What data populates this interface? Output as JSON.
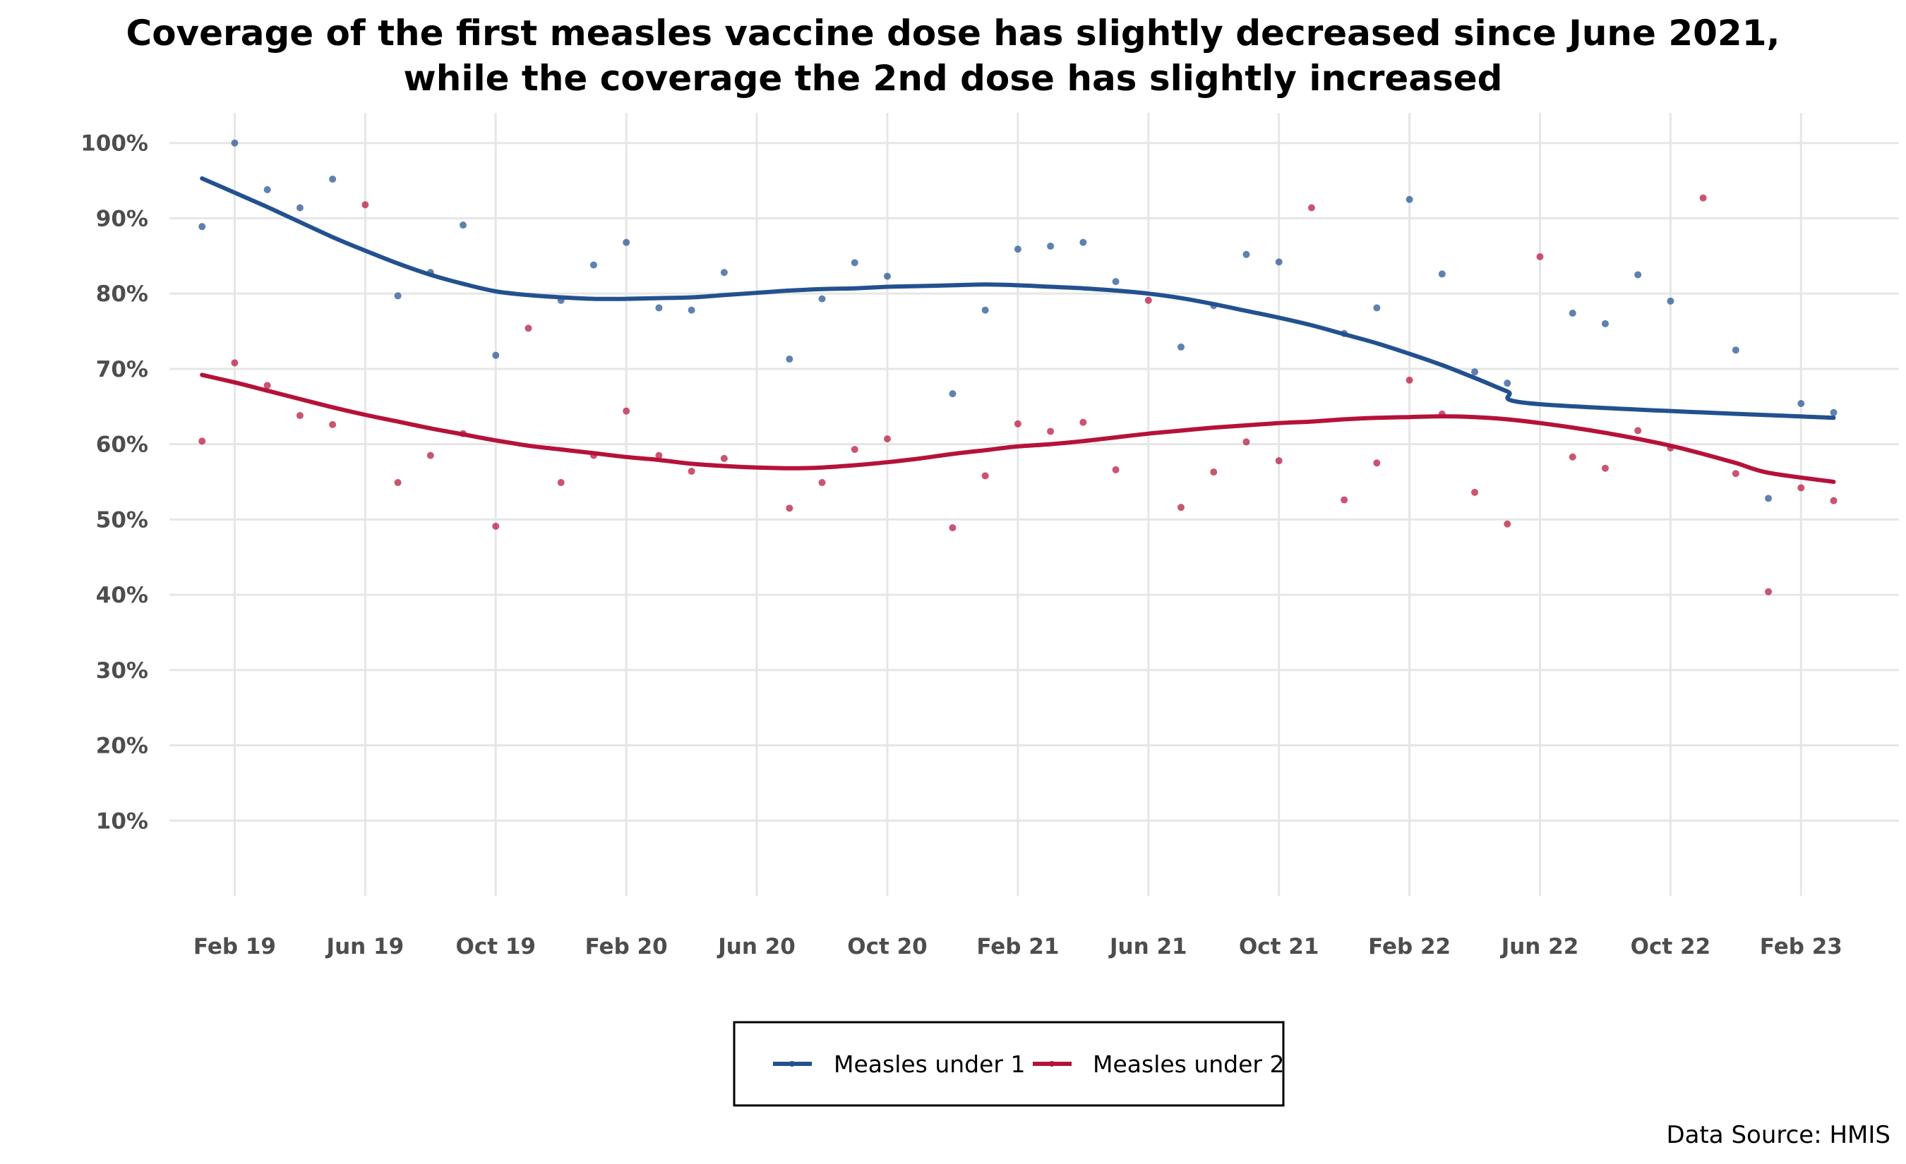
{
  "chart_data": {
    "type": "scatter",
    "title": "Coverage of the first measles vaccine dose has slightly decreased since June 2021,",
    "subtitle": "while the coverage the 2nd dose has slightly increased",
    "xlabel": "",
    "ylabel": "",
    "caption": "Data Source: HMIS",
    "x_ticks": [
      "Feb 19",
      "Jun 19",
      "Oct 19",
      "Feb 20",
      "Jun 20",
      "Oct 20",
      "Feb 21",
      "Jun 21",
      "Oct 21",
      "Feb 22",
      "Jun 22",
      "Oct 22",
      "Feb 23"
    ],
    "x_tick_values": [
      "2019-02",
      "2019-06",
      "2019-10",
      "2020-02",
      "2020-06",
      "2020-10",
      "2021-02",
      "2021-06",
      "2021-10",
      "2022-02",
      "2022-06",
      "2022-10",
      "2023-02"
    ],
    "y_ticks": [
      "10%",
      "20%",
      "30%",
      "40%",
      "50%",
      "60%",
      "70%",
      "80%",
      "90%",
      "100%"
    ],
    "y_tick_values": [
      10,
      20,
      30,
      40,
      50,
      60,
      70,
      80,
      90,
      100
    ],
    "xlim": [
      "2018-12",
      "2023-05"
    ],
    "ylim": [
      0,
      104
    ],
    "grid": true,
    "legend_position": "bottom",
    "x": [
      "2019-01",
      "2019-02",
      "2019-03",
      "2019-04",
      "2019-05",
      "2019-06",
      "2019-07",
      "2019-08",
      "2019-09",
      "2019-10",
      "2019-11",
      "2019-12",
      "2020-01",
      "2020-02",
      "2020-03",
      "2020-04",
      "2020-05",
      "2020-06",
      "2020-07",
      "2020-08",
      "2020-09",
      "2020-10",
      "2020-11",
      "2020-12",
      "2021-01",
      "2021-02",
      "2021-03",
      "2021-04",
      "2021-05",
      "2021-06",
      "2021-07",
      "2021-08",
      "2021-09",
      "2021-10",
      "2021-11",
      "2021-12",
      "2022-01",
      "2022-02",
      "2022-03",
      "2022-04",
      "2022-05",
      "2022-06",
      "2022-07",
      "2022-08",
      "2022-09",
      "2022-10",
      "2022-11",
      "2022-12",
      "2023-01",
      "2023-02",
      "2023-03"
    ],
    "series": [
      {
        "name": "Measles under 1",
        "color": "#23518f",
        "values": [
          88.9,
          100,
          93.8,
          91.4,
          95.2,
          null,
          79.7,
          82.8,
          89.1,
          71.8,
          null,
          79.1,
          83.8,
          86.8,
          78.1,
          77.8,
          82.8,
          null,
          71.3,
          79.3,
          84.1,
          82.3,
          null,
          66.7,
          77.8,
          85.9,
          86.3,
          86.8,
          81.6,
          null,
          72.9,
          78.4,
          85.2,
          84.2,
          null,
          74.7,
          78.1,
          92.5,
          82.6,
          69.6,
          68.1,
          null,
          77.4,
          76.0,
          82.5,
          79.0,
          null,
          72.5,
          52.8,
          65.4,
          64.2
        ],
        "trend": [
          95.3,
          93.4,
          91.5,
          89.5,
          87.5,
          85.7,
          84.0,
          82.5,
          81.3,
          80.3,
          79.8,
          79.5,
          79.3,
          79.3,
          79.4,
          79.5,
          79.8,
          80.1,
          80.4,
          80.6,
          80.7,
          80.9,
          81.0,
          81.1,
          81.2,
          81.1,
          80.9,
          80.7,
          80.4,
          80.0,
          79.4,
          78.6,
          77.7,
          76.8,
          75.8,
          74.6,
          73.4,
          72.0,
          70.5,
          68.8,
          67.0,
          65.3,
          63.5
        ],
        "trend_x": [
          "2019-01",
          "2019-02",
          "2019-03",
          "2019-04",
          "2019-05",
          "2019-06",
          "2019-07",
          "2019-08",
          "2019-09",
          "2019-10",
          "2019-11",
          "2019-12",
          "2020-01",
          "2020-02",
          "2020-03",
          "2020-04",
          "2020-05",
          "2020-06",
          "2020-07",
          "2020-08",
          "2020-09",
          "2020-10",
          "2020-11",
          "2020-12",
          "2021-01",
          "2021-02",
          "2021-03",
          "2021-04",
          "2021-05",
          "2021-06",
          "2021-07",
          "2021-08",
          "2021-09",
          "2021-10",
          "2021-11",
          "2021-12",
          "2022-01",
          "2022-02",
          "2022-03",
          "2022-04",
          "2022-05",
          "2022-06",
          "2023-03"
        ]
      },
      {
        "name": "Measles under 2",
        "color": "#b5123a",
        "values": [
          60.4,
          70.8,
          67.8,
          63.8,
          62.6,
          91.8,
          54.9,
          58.5,
          61.4,
          49.1,
          75.4,
          54.9,
          58.5,
          64.4,
          58.5,
          56.4,
          58.1,
          null,
          51.5,
          54.9,
          59.3,
          60.7,
          null,
          48.9,
          55.8,
          62.7,
          61.7,
          62.9,
          56.6,
          79.1,
          51.6,
          56.3,
          60.3,
          57.8,
          91.4,
          52.6,
          57.5,
          68.5,
          64.0,
          53.6,
          49.4,
          84.9,
          58.3,
          56.8,
          61.8,
          59.5,
          92.7,
          56.1,
          40.4,
          54.2,
          52.5
        ],
        "trend": [
          69.2,
          68.2,
          67.1,
          66.0,
          64.9,
          63.9,
          63.0,
          62.1,
          61.3,
          60.5,
          59.8,
          59.3,
          58.8,
          58.3,
          57.9,
          57.4,
          57.1,
          56.9,
          56.8,
          56.9,
          57.2,
          57.6,
          58.1,
          58.7,
          59.2,
          59.7,
          60.0,
          60.4,
          60.9,
          61.4,
          61.8,
          62.2,
          62.5,
          62.8,
          63.0,
          63.3,
          63.5,
          63.6,
          63.7,
          63.6,
          63.3,
          62.8,
          62.2,
          61.5,
          60.7,
          59.8,
          58.7,
          57.5,
          56.2,
          55.0
        ],
        "trend_x": [
          "2019-01",
          "2019-02",
          "2019-03",
          "2019-04",
          "2019-05",
          "2019-06",
          "2019-07",
          "2019-08",
          "2019-09",
          "2019-10",
          "2019-11",
          "2019-12",
          "2020-01",
          "2020-02",
          "2020-03",
          "2020-04",
          "2020-05",
          "2020-06",
          "2020-07",
          "2020-08",
          "2020-09",
          "2020-10",
          "2020-11",
          "2020-12",
          "2021-01",
          "2021-02",
          "2021-03",
          "2021-04",
          "2021-05",
          "2021-06",
          "2021-07",
          "2021-08",
          "2021-09",
          "2021-10",
          "2021-11",
          "2021-12",
          "2022-01",
          "2022-02",
          "2022-03",
          "2022-04",
          "2022-05",
          "2022-06",
          "2022-07",
          "2022-08",
          "2022-09",
          "2022-10",
          "2022-11",
          "2022-12",
          "2023-01",
          "2023-03"
        ]
      }
    ]
  }
}
